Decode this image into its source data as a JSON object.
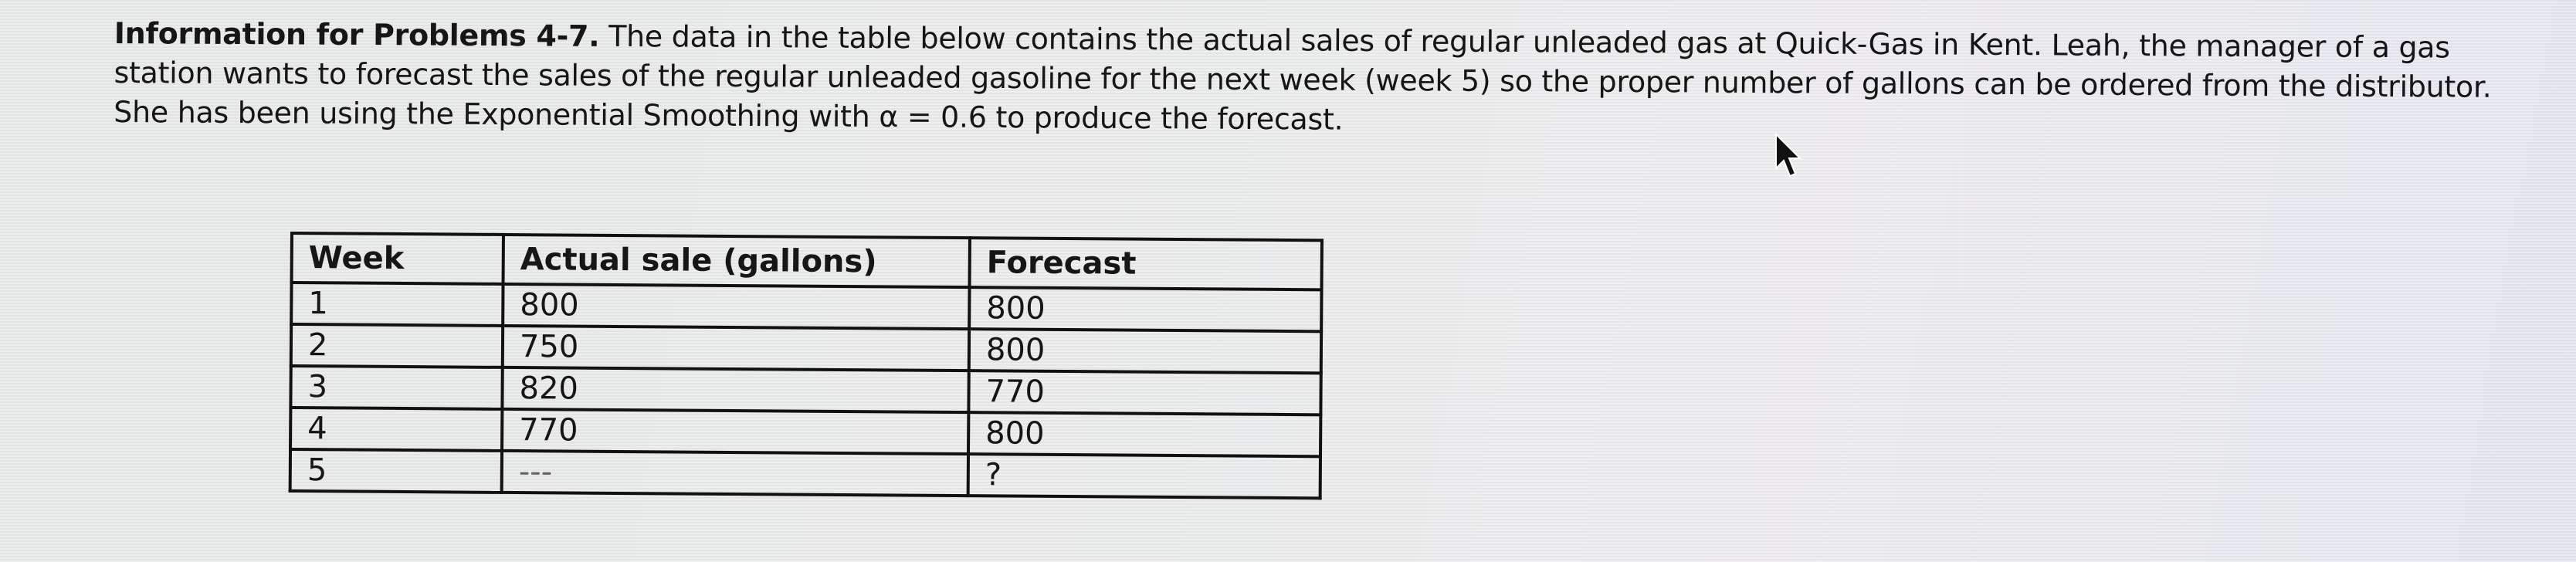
{
  "intro": {
    "bold_lead": "Information for Problems 4-7.",
    "text": "The data in the table below contains the actual sales of regular unleaded gas at Quick-Gas in Kent.  Leah, the manager of a gas station wants to forecast the sales of the regular unleaded gasoline for the next week (week 5) so the proper number of gallons can be ordered from the distributor. She has been using the Exponential Smoothing with α = 0.6 to produce the forecast."
  },
  "table": {
    "headers": [
      "Week",
      "Actual sale (gallons)",
      "Forecast"
    ],
    "rows": [
      [
        "1",
        "800",
        "800"
      ],
      [
        "2",
        "750",
        "800"
      ],
      [
        "3",
        "820",
        "770"
      ],
      [
        "4",
        "770",
        "800"
      ],
      [
        "5",
        "---",
        "?"
      ]
    ]
  }
}
